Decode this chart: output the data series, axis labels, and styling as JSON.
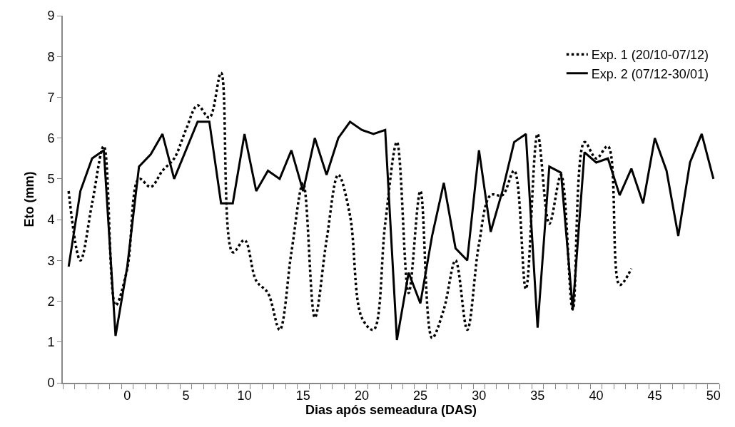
{
  "chart_data": {
    "type": "line",
    "xlabel": "Dias após semeadura (DAS)",
    "ylabel": "Eto (mm)",
    "x": [
      -5,
      -4,
      -3,
      -2,
      -1,
      0,
      1,
      2,
      3,
      4,
      5,
      6,
      7,
      8,
      9,
      10,
      11,
      12,
      13,
      14,
      15,
      16,
      17,
      18,
      19,
      20,
      21,
      22,
      23,
      24,
      25,
      26,
      27,
      28,
      29,
      30,
      31,
      32,
      33,
      34,
      35,
      36,
      37,
      38,
      39,
      40,
      41,
      42,
      43,
      44,
      45,
      46,
      47,
      48,
      49,
      50
    ],
    "xlim": [
      -5.5,
      50.5
    ],
    "xticks": [
      0,
      5,
      10,
      15,
      20,
      25,
      30,
      35,
      40,
      45,
      50
    ],
    "ylim": [
      0,
      9
    ],
    "yticks": [
      0,
      1,
      2,
      3,
      4,
      5,
      6,
      7,
      8,
      9
    ],
    "legend": "top right",
    "marker": "none",
    "series": [
      {
        "name": "Exp. 1 (20/10-07/12)",
        "color": "#000000",
        "line_style": "dotted",
        "values": [
          4.7,
          3.0,
          4.4,
          5.8,
          1.9,
          2.8,
          5.0,
          4.8,
          5.2,
          5.5,
          6.2,
          6.8,
          6.5,
          7.6,
          3.2,
          3.5,
          2.5,
          2.2,
          1.3,
          3.2,
          4.9,
          1.6,
          3.5,
          5.1,
          4.1,
          1.6,
          1.3,
          3.9,
          5.9,
          2.2,
          4.7,
          1.1,
          1.8,
          3.0,
          1.3,
          3.4,
          4.6,
          4.6,
          5.2,
          2.3,
          6.1,
          3.9,
          5.1,
          1.8,
          5.9,
          5.5,
          5.8,
          2.4,
          2.8,
          null,
          null,
          null,
          null,
          null,
          null,
          null
        ]
      },
      {
        "name": "Exp. 2 (07/12-30/01)",
        "color": "#000000",
        "line_style": "solid",
        "values": [
          2.85,
          4.7,
          5.5,
          5.7,
          1.15,
          2.85,
          5.3,
          5.6,
          6.1,
          5.0,
          5.7,
          6.4,
          6.4,
          4.4,
          4.4,
          6.1,
          4.7,
          5.2,
          5.0,
          5.7,
          4.7,
          6.0,
          5.1,
          6.0,
          6.4,
          6.2,
          6.1,
          6.2,
          1.05,
          2.7,
          1.95,
          3.6,
          4.9,
          3.3,
          3.0,
          5.7,
          3.7,
          4.7,
          5.9,
          6.1,
          1.35,
          5.3,
          5.15,
          1.8,
          5.65,
          5.4,
          5.5,
          4.6,
          5.25,
          4.4,
          6.0,
          5.2,
          3.6,
          5.4,
          6.1,
          5.0
        ]
      }
    ]
  }
}
